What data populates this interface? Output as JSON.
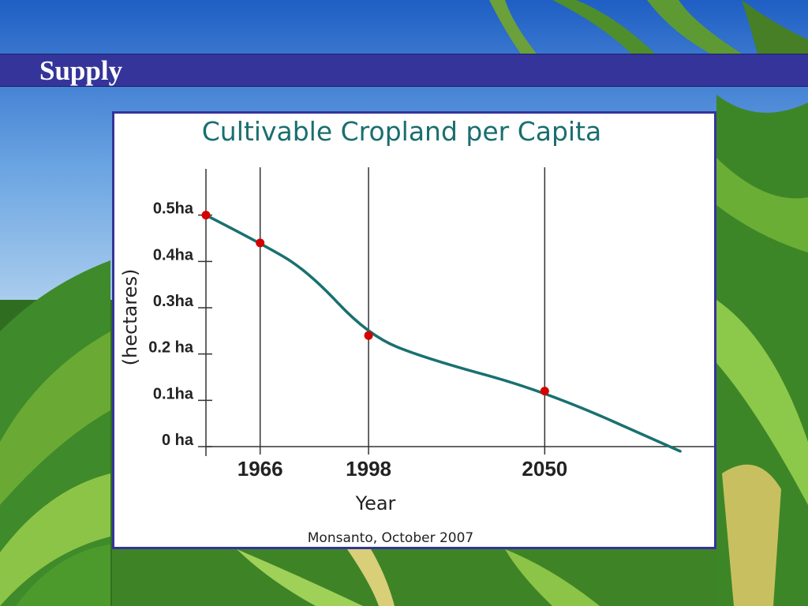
{
  "slide": {
    "title": "Supply"
  },
  "colors": {
    "title_bar": "#34349a",
    "line": "#1a7070",
    "marker": "#d40000",
    "chart_title": "#1a6e6e"
  },
  "chart_data": {
    "type": "line",
    "title": "Cultivable Cropland per Capita",
    "xlabel": "Year",
    "ylabel": "(hectares)",
    "source": "Monsanto, October 2007",
    "x_ticks": [
      {
        "value": 1966,
        "label": "1966"
      },
      {
        "value": 1998,
        "label": "1998"
      },
      {
        "value": 2050,
        "label": "2050"
      }
    ],
    "y_ticks": [
      {
        "value": 0,
        "label": "0 ha"
      },
      {
        "value": 0.1,
        "label": "0.1ha"
      },
      {
        "value": 0.2,
        "label": "0.2 ha"
      },
      {
        "value": 0.3,
        "label": "0.3ha"
      },
      {
        "value": 0.4,
        "label": "0.4ha"
      },
      {
        "value": 0.5,
        "label": "0.5ha"
      }
    ],
    "xlim": [
      1950,
      2100
    ],
    "ylim": [
      0,
      0.6
    ],
    "grid_vertical": true,
    "series": [
      {
        "points": [
          {
            "x": 1950,
            "y": 0.5
          },
          {
            "x": 1966,
            "y": 0.44
          },
          {
            "x": 1980,
            "y": 0.38
          },
          {
            "x": 1998,
            "y": 0.24
          },
          {
            "x": 2015,
            "y": 0.19
          },
          {
            "x": 2050,
            "y": 0.12
          },
          {
            "x": 2090,
            "y": -0.01
          }
        ],
        "markers": [
          {
            "x": 1950,
            "y": 0.5
          },
          {
            "x": 1966,
            "y": 0.44
          },
          {
            "x": 1998,
            "y": 0.24
          },
          {
            "x": 2050,
            "y": 0.12
          }
        ]
      }
    ]
  }
}
